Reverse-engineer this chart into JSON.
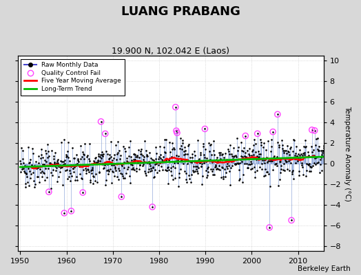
{
  "title": "LUANG PRABANG",
  "subtitle": "19.900 N, 102.042 E (Laos)",
  "ylabel_right": "Temperature Anomaly (°C)",
  "watermark": "Berkeley Earth",
  "xlim": [
    1949.5,
    2015.5
  ],
  "ylim": [
    -8.5,
    10.5
  ],
  "yticks": [
    -8,
    -6,
    -4,
    -2,
    0,
    2,
    4,
    6,
    8,
    10
  ],
  "xticks": [
    1950,
    1960,
    1970,
    1980,
    1990,
    2000,
    2010
  ],
  "seed": 42,
  "raw_color": "#4444cc",
  "stem_color": "#6688cc",
  "qc_color": "#ff44ff",
  "moving_avg_color": "#ff0000",
  "trend_color": "#00bb00",
  "background_color": "#d8d8d8",
  "plot_bg_color": "#ffffff",
  "title_fontsize": 13,
  "subtitle_fontsize": 9,
  "tick_fontsize": 8
}
